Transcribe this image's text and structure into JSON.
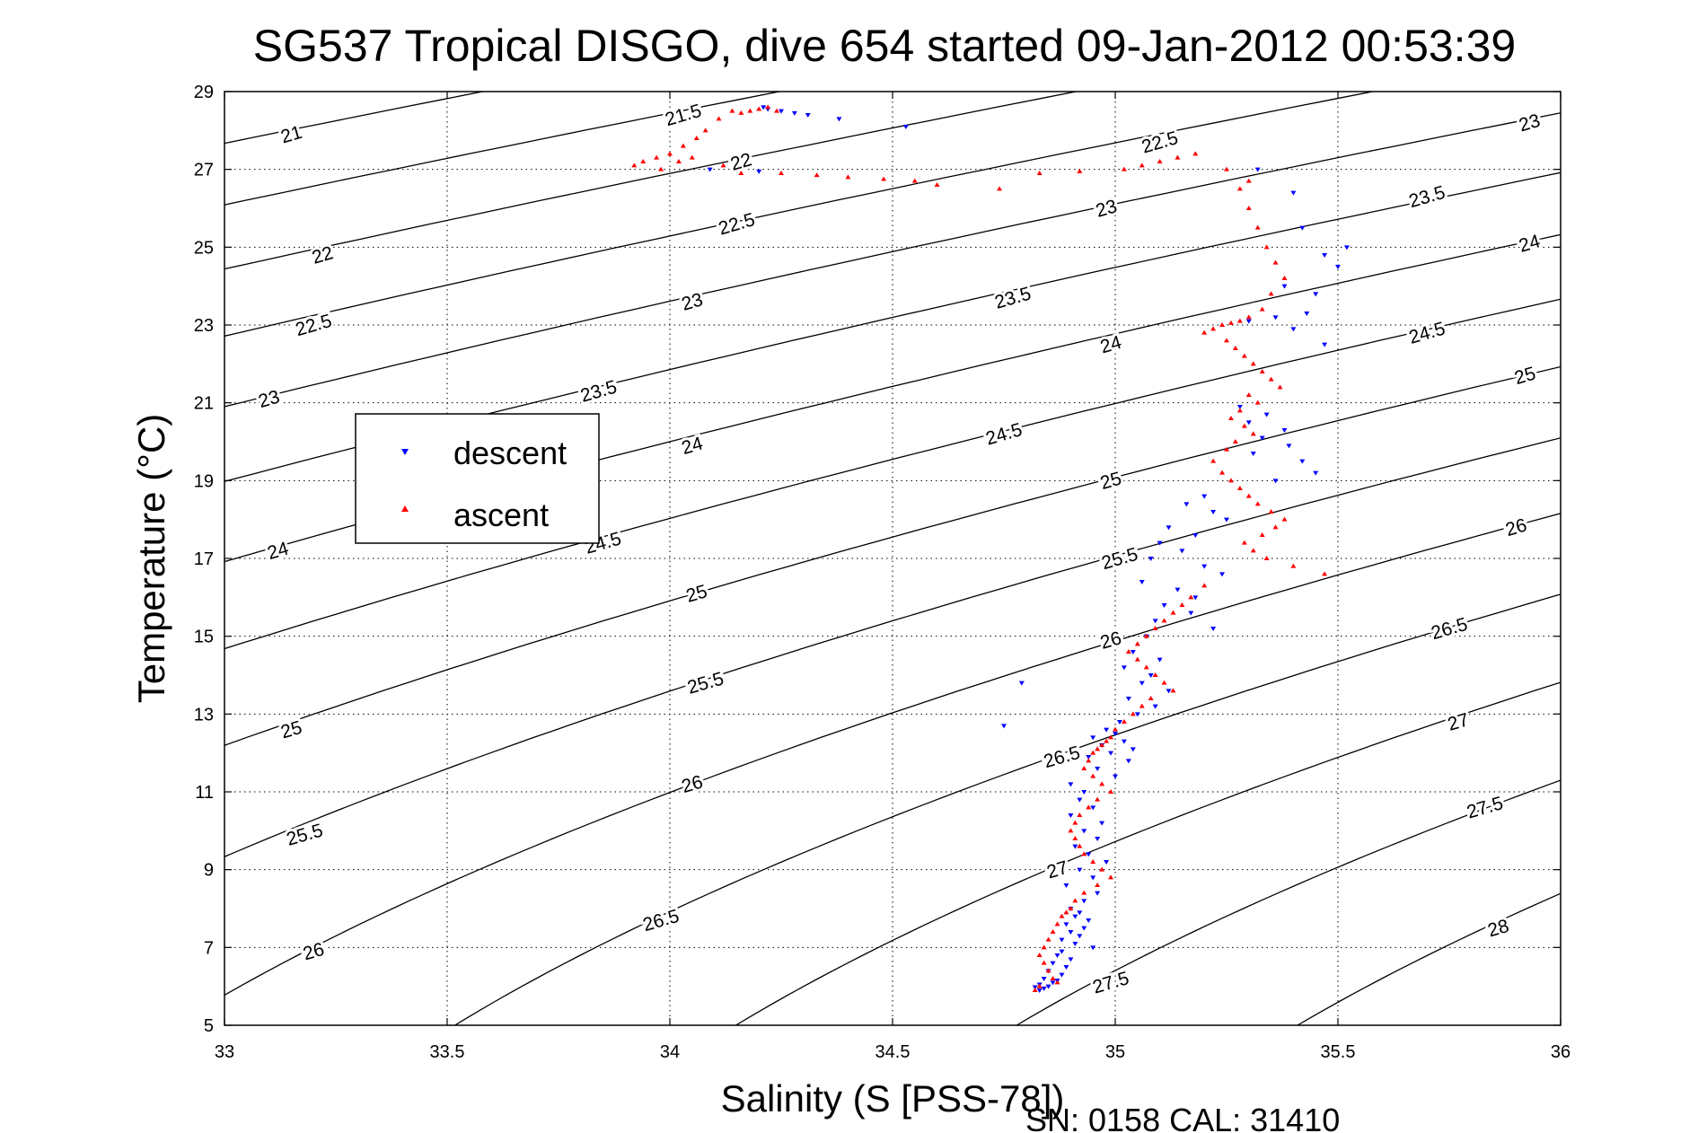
{
  "chart_data": {
    "type": "scatter",
    "title": "SG537 Tropical DISGO, dive 654 started 09-Jan-2012 00:53:39",
    "xlabel": "Salinity (S [PSS-78])",
    "ylabel": "Temperature (°C)",
    "xlim": [
      33,
      36
    ],
    "ylim": [
      5,
      29
    ],
    "x_ticks": [
      "33",
      "33.5",
      "34",
      "34.5",
      "35",
      "35.5",
      "36"
    ],
    "y_ticks": [
      "5",
      "7",
      "9",
      "11",
      "13",
      "15",
      "17",
      "19",
      "21",
      "23",
      "25",
      "27",
      "29"
    ],
    "grid": true,
    "legend_position": "upper-left",
    "footer": "SN: 0158  CAL: 31410",
    "colors": {
      "descent": "#0000ff",
      "ascent": "#ff0000",
      "contour": "#000000"
    },
    "contours": {
      "levels": [
        21,
        21.5,
        22,
        22.5,
        23,
        23.5,
        24,
        24.5,
        25,
        25.5,
        26,
        26.5,
        27,
        27.5,
        28
      ],
      "labels": [
        {
          "text": "21",
          "s": 33.15,
          "t": 27.9
        },
        {
          "text": "21.5",
          "s": 34.03,
          "t": 28.4
        },
        {
          "text": "22",
          "s": 34.16,
          "t": 27.2
        },
        {
          "text": "22.5",
          "s": 35.1,
          "t": 27.7
        },
        {
          "text": "23",
          "s": 35.93,
          "t": 28.2
        },
        {
          "text": "22",
          "s": 33.22,
          "t": 24.8
        },
        {
          "text": "22.5",
          "s": 34.15,
          "t": 25.6
        },
        {
          "text": "23",
          "s": 34.98,
          "t": 26.0
        },
        {
          "text": "23.5",
          "s": 35.7,
          "t": 26.3
        },
        {
          "text": "24",
          "s": 35.93,
          "t": 25.1
        },
        {
          "text": "22.5",
          "s": 33.2,
          "t": 23.0
        },
        {
          "text": "23",
          "s": 34.05,
          "t": 23.6
        },
        {
          "text": "23.5",
          "s": 34.77,
          "t": 23.7
        },
        {
          "text": "24",
          "s": 34.99,
          "t": 22.5
        },
        {
          "text": "24.5",
          "s": 35.7,
          "t": 22.8
        },
        {
          "text": "25",
          "s": 35.92,
          "t": 21.7
        },
        {
          "text": "23",
          "s": 33.1,
          "t": 21.1
        },
        {
          "text": "23.5",
          "s": 33.84,
          "t": 21.3
        },
        {
          "text": "24",
          "s": 34.05,
          "t": 19.9
        },
        {
          "text": "24.5",
          "s": 34.75,
          "t": 20.2
        },
        {
          "text": "25",
          "s": 34.99,
          "t": 19.0
        },
        {
          "text": "24",
          "s": 33.12,
          "t": 17.2
        },
        {
          "text": "24.5",
          "s": 33.85,
          "t": 17.4
        },
        {
          "text": "25.5",
          "s": 35.01,
          "t": 17.0
        },
        {
          "text": "26",
          "s": 35.9,
          "t": 17.8
        },
        {
          "text": "25",
          "s": 34.06,
          "t": 16.1
        },
        {
          "text": "26",
          "s": 34.99,
          "t": 14.9
        },
        {
          "text": "26.5",
          "s": 35.75,
          "t": 15.2
        },
        {
          "text": "25.5",
          "s": 34.08,
          "t": 13.8
        },
        {
          "text": "25",
          "s": 33.15,
          "t": 12.6
        },
        {
          "text": "26.5",
          "s": 34.88,
          "t": 11.9
        },
        {
          "text": "27",
          "s": 35.77,
          "t": 12.8
        },
        {
          "text": "26",
          "s": 34.05,
          "t": 11.2
        },
        {
          "text": "25.5",
          "s": 33.18,
          "t": 9.9
        },
        {
          "text": "27.5",
          "s": 35.83,
          "t": 10.6
        },
        {
          "text": "27",
          "s": 34.87,
          "t": 9.0
        },
        {
          "text": "26.5",
          "s": 33.98,
          "t": 7.7
        },
        {
          "text": "26",
          "s": 33.2,
          "t": 6.9
        },
        {
          "text": "28",
          "s": 35.86,
          "t": 7.5
        },
        {
          "text": "27.5",
          "s": 34.99,
          "t": 6.1
        }
      ]
    },
    "series": [
      {
        "name": "descent",
        "marker": "triangle-down",
        "x": [
          34.21,
          34.22,
          34.25,
          34.28,
          34.31,
          34.38,
          34.53,
          34.09,
          34.2,
          35.32,
          35.4,
          35.42,
          35.47,
          35.5,
          35.52,
          35.38,
          35.45,
          35.43,
          35.36,
          35.3,
          35.4,
          35.47,
          35.28,
          35.34,
          35.3,
          35.38,
          35.33,
          35.39,
          35.31,
          35.42,
          35.45,
          35.36,
          35.2,
          35.16,
          35.22,
          35.25,
          35.12,
          35.18,
          35.1,
          35.15,
          35.08,
          35.2,
          35.24,
          35.06,
          35.14,
          35.18,
          35.11,
          35.17,
          35.09,
          35.22,
          35.07,
          35.04,
          35.1,
          35.02,
          35.08,
          35.06,
          35.12,
          35.03,
          35.09,
          35.05,
          35.01,
          34.98,
          35.0,
          34.95,
          35.02,
          34.97,
          35.04,
          34.99,
          34.94,
          35.03,
          34.96,
          35.0,
          34.79,
          34.75,
          34.9,
          34.93,
          34.92,
          34.95,
          34.9,
          34.97,
          34.93,
          34.96,
          34.91,
          34.94,
          34.98,
          34.92,
          34.95,
          34.89,
          34.96,
          34.93,
          34.9,
          34.92,
          34.91,
          34.94,
          34.89,
          34.93,
          34.9,
          34.92,
          34.88,
          34.91,
          34.95,
          34.88,
          34.87,
          34.9,
          34.86,
          34.89,
          34.85,
          34.88,
          34.84,
          34.87,
          34.86,
          34.83,
          34.85,
          34.82,
          34.84,
          34.83
        ],
        "y": [
          28.6,
          28.55,
          28.5,
          28.45,
          28.4,
          28.3,
          28.1,
          27.0,
          26.95,
          27.0,
          26.4,
          25.5,
          24.8,
          24.5,
          25.0,
          24.0,
          23.8,
          23.3,
          23.2,
          23.1,
          22.9,
          22.5,
          20.9,
          20.7,
          20.5,
          20.3,
          20.1,
          19.9,
          19.7,
          19.5,
          19.2,
          19.0,
          18.6,
          18.4,
          18.2,
          18.0,
          17.8,
          17.6,
          17.4,
          17.2,
          17.0,
          16.8,
          16.6,
          16.4,
          16.2,
          16.0,
          15.8,
          15.6,
          15.4,
          15.2,
          15.0,
          14.6,
          14.4,
          14.2,
          14.0,
          13.8,
          13.6,
          13.4,
          13.2,
          13.0,
          12.8,
          12.6,
          12.5,
          12.4,
          12.3,
          12.2,
          12.1,
          12.0,
          11.9,
          11.8,
          11.6,
          11.4,
          13.8,
          12.7,
          11.2,
          11.0,
          10.8,
          10.6,
          10.4,
          10.2,
          10.0,
          9.8,
          9.6,
          9.4,
          9.2,
          9.0,
          8.8,
          8.6,
          8.4,
          8.2,
          8.0,
          7.9,
          7.8,
          7.7,
          7.6,
          7.5,
          7.4,
          7.3,
          7.2,
          7.1,
          7.0,
          6.9,
          6.8,
          6.7,
          6.6,
          6.5,
          6.4,
          6.3,
          6.2,
          6.15,
          6.1,
          6.05,
          6.0,
          5.98,
          5.95,
          5.9
        ]
      },
      {
        "name": "ascent",
        "marker": "triangle-up",
        "x": [
          34.14,
          34.16,
          34.18,
          34.2,
          34.22,
          34.24,
          34.11,
          34.08,
          34.06,
          34.03,
          34.0,
          33.97,
          33.94,
          33.92,
          33.98,
          34.02,
          34.05,
          34.12,
          34.16,
          34.25,
          34.33,
          34.4,
          34.48,
          34.55,
          34.6,
          34.74,
          34.83,
          34.92,
          35.02,
          35.06,
          35.1,
          35.14,
          35.18,
          35.25,
          35.3,
          35.28,
          35.3,
          35.32,
          35.34,
          35.36,
          35.38,
          35.35,
          35.33,
          35.3,
          35.28,
          35.26,
          35.24,
          35.22,
          35.2,
          35.25,
          35.27,
          35.29,
          35.31,
          35.33,
          35.35,
          35.37,
          35.3,
          35.32,
          35.28,
          35.26,
          35.29,
          35.31,
          35.27,
          35.25,
          35.22,
          35.24,
          35.26,
          35.28,
          35.3,
          35.32,
          35.35,
          35.38,
          35.36,
          35.33,
          35.29,
          35.31,
          35.34,
          35.4,
          35.47,
          35.2,
          35.17,
          35.15,
          35.13,
          35.11,
          35.09,
          35.07,
          35.05,
          35.03,
          35.05,
          35.07,
          35.09,
          35.11,
          35.13,
          35.08,
          35.06,
          35.04,
          35.02,
          35.0,
          34.99,
          34.98,
          34.97,
          34.96,
          34.95,
          34.94,
          34.93,
          34.95,
          34.97,
          34.99,
          34.96,
          34.94,
          34.92,
          34.91,
          34.9,
          34.91,
          34.92,
          34.93,
          34.95,
          34.97,
          34.99,
          34.96,
          34.93,
          34.91,
          34.9,
          34.89,
          34.88,
          34.87,
          34.86,
          34.85,
          34.84,
          34.83,
          34.84,
          34.85,
          34.86,
          34.87,
          34.83,
          34.82
        ],
        "y": [
          28.5,
          28.45,
          28.5,
          28.55,
          28.6,
          28.5,
          28.3,
          28.0,
          27.8,
          27.6,
          27.4,
          27.3,
          27.2,
          27.1,
          27.0,
          27.2,
          27.3,
          27.1,
          26.9,
          26.9,
          26.85,
          26.8,
          26.75,
          26.7,
          26.6,
          26.5,
          26.9,
          26.95,
          27.0,
          27.1,
          27.2,
          27.3,
          27.4,
          27.0,
          26.7,
          26.5,
          26.0,
          25.5,
          25.0,
          24.6,
          24.2,
          23.8,
          23.4,
          23.2,
          23.1,
          23.05,
          23.0,
          22.9,
          22.8,
          22.6,
          22.4,
          22.2,
          22.0,
          21.8,
          21.6,
          21.4,
          21.2,
          21.0,
          20.8,
          20.6,
          20.4,
          20.2,
          20.0,
          19.8,
          19.5,
          19.2,
          19.0,
          18.8,
          18.6,
          18.4,
          18.2,
          18.0,
          17.8,
          17.6,
          17.4,
          17.2,
          17.0,
          16.8,
          16.6,
          16.3,
          16.0,
          15.8,
          15.6,
          15.4,
          15.2,
          15.0,
          14.8,
          14.6,
          14.4,
          14.2,
          14.0,
          13.8,
          13.6,
          13.4,
          13.2,
          13.0,
          12.8,
          12.6,
          12.4,
          12.3,
          12.2,
          12.1,
          12.0,
          11.8,
          11.6,
          11.4,
          11.2,
          11.0,
          10.8,
          10.6,
          10.4,
          10.2,
          10.0,
          9.8,
          9.6,
          9.4,
          9.2,
          9.0,
          8.8,
          8.6,
          8.4,
          8.2,
          8.0,
          7.9,
          7.8,
          7.6,
          7.4,
          7.2,
          7.0,
          6.8,
          6.6,
          6.4,
          6.2,
          6.1,
          6.0,
          5.9
        ]
      }
    ]
  }
}
